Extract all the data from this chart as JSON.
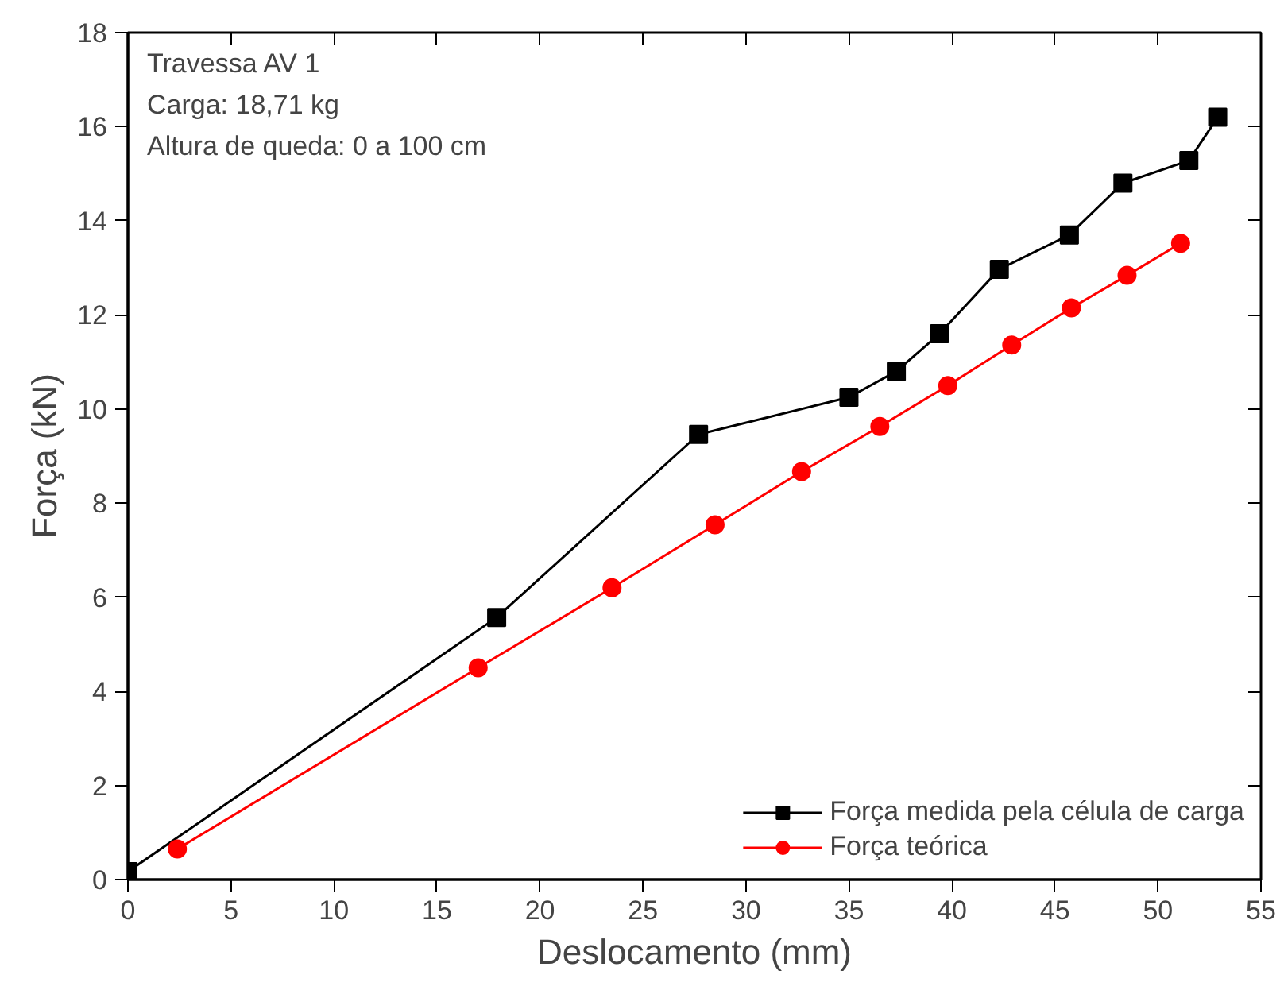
{
  "chart_data": {
    "type": "line",
    "xlabel": "Deslocamento (mm)",
    "ylabel": "Força (kN)",
    "annotations": [
      "Travessa AV 1",
      "Carga: 18,71 kg",
      "Altura de queda: 0 a 100 cm"
    ],
    "xlim": [
      0,
      55
    ],
    "xticks": [
      0,
      5,
      10,
      15,
      20,
      25,
      30,
      35,
      40,
      45,
      50,
      55
    ],
    "ylim": [
      0,
      18
    ],
    "yticks": [
      0,
      2,
      4,
      6,
      8,
      10,
      12,
      14,
      16,
      18
    ],
    "grid": false,
    "legend": "bottom right",
    "series": [
      {
        "name": "Força medida pela célula de carga",
        "color": "#000000",
        "marker": "square",
        "x": [
          0,
          17.9,
          27.7,
          35.0,
          37.3,
          39.4,
          42.3,
          45.7,
          48.3,
          51.5,
          52.9
        ],
        "values": [
          0.17,
          5.57,
          9.46,
          10.25,
          10.8,
          11.6,
          12.97,
          13.7,
          14.8,
          15.28,
          16.2
        ]
      },
      {
        "name": "Força teórica",
        "color": "#ff0000",
        "marker": "circle",
        "x": [
          2.4,
          17.0,
          23.5,
          28.5,
          32.7,
          36.5,
          39.8,
          42.9,
          45.8,
          48.5,
          51.1
        ],
        "values": [
          0.65,
          4.5,
          6.2,
          7.54,
          8.67,
          9.63,
          10.5,
          11.36,
          12.15,
          12.84,
          13.52
        ]
      }
    ]
  }
}
